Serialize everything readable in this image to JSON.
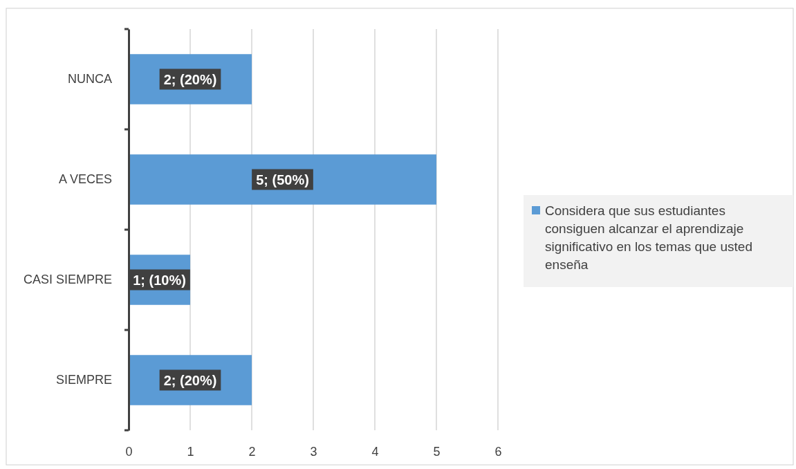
{
  "chart_data": {
    "type": "bar",
    "orientation": "horizontal",
    "categories": [
      "NUNCA",
      "A VECES",
      "CASI SIEMPRE",
      "SIEMPRE"
    ],
    "series": [
      {
        "name": "Considera que sus estudiantes consiguen alcanzar el aprendizaje significativo en los temas que usted enseña",
        "color": "#5b9bd5",
        "values": [
          2,
          5,
          1,
          2
        ],
        "value_labels": [
          "2; (20%)",
          "5; (50%)",
          "1; (10%)",
          "2; (20%)"
        ]
      }
    ],
    "xlim": [
      0,
      6
    ],
    "xticks": [
      0,
      1,
      2,
      3,
      4,
      5,
      6
    ],
    "grid": "x",
    "legend": "right"
  }
}
